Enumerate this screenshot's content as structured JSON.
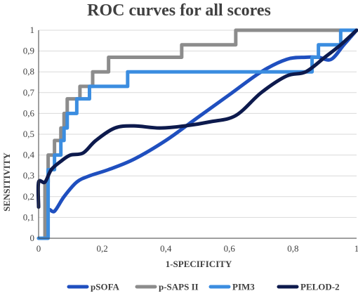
{
  "chart_data": {
    "type": "line",
    "title": "ROC curves for all scores",
    "xlabel": "1-SPECIFICITY",
    "ylabel": "SENSITIVITY",
    "xlim": [
      0,
      1
    ],
    "ylim": [
      0,
      1
    ],
    "x_ticks": [
      "0",
      "0,2",
      "0,4",
      "0,6",
      "0,8",
      "1"
    ],
    "y_ticks": [
      "0",
      "0,1",
      "0,2",
      "0,3",
      "0,4",
      "0,5",
      "0,6",
      "0,7",
      "0,8",
      "0,9",
      "1"
    ],
    "grid": "horizontal",
    "legend_position": "bottom",
    "series": [
      {
        "name": "pSOFA",
        "color": "#1f4fbf",
        "smooth": true,
        "points": [
          [
            0.02,
            0.0
          ],
          [
            0.03,
            0.13
          ],
          [
            0.05,
            0.13
          ],
          [
            0.08,
            0.2
          ],
          [
            0.12,
            0.27
          ],
          [
            0.16,
            0.3
          ],
          [
            0.22,
            0.33
          ],
          [
            0.3,
            0.38
          ],
          [
            0.4,
            0.47
          ],
          [
            0.5,
            0.58
          ],
          [
            0.6,
            0.69
          ],
          [
            0.7,
            0.8
          ],
          [
            0.78,
            0.86
          ],
          [
            0.84,
            0.87
          ],
          [
            0.88,
            0.87
          ],
          [
            0.92,
            0.86
          ],
          [
            0.96,
            0.93
          ],
          [
            1.0,
            1.0
          ]
        ]
      },
      {
        "name": "p-SAPS II",
        "color": "#8c8c8c",
        "smooth": false,
        "points": [
          [
            0.0,
            0.0
          ],
          [
            0.02,
            0.0
          ],
          [
            0.02,
            0.27
          ],
          [
            0.03,
            0.27
          ],
          [
            0.03,
            0.4
          ],
          [
            0.05,
            0.4
          ],
          [
            0.05,
            0.47
          ],
          [
            0.07,
            0.47
          ],
          [
            0.07,
            0.53
          ],
          [
            0.08,
            0.53
          ],
          [
            0.08,
            0.6
          ],
          [
            0.09,
            0.6
          ],
          [
            0.09,
            0.67
          ],
          [
            0.13,
            0.67
          ],
          [
            0.13,
            0.73
          ],
          [
            0.17,
            0.73
          ],
          [
            0.17,
            0.8
          ],
          [
            0.22,
            0.8
          ],
          [
            0.22,
            0.87
          ],
          [
            0.45,
            0.87
          ],
          [
            0.45,
            0.93
          ],
          [
            0.62,
            0.93
          ],
          [
            0.62,
            1.0
          ],
          [
            1.0,
            1.0
          ]
        ]
      },
      {
        "name": "PIM3",
        "color": "#3b8de0",
        "smooth": false,
        "points": [
          [
            0.0,
            0.0
          ],
          [
            0.03,
            0.0
          ],
          [
            0.03,
            0.33
          ],
          [
            0.05,
            0.33
          ],
          [
            0.05,
            0.4
          ],
          [
            0.07,
            0.4
          ],
          [
            0.07,
            0.47
          ],
          [
            0.08,
            0.47
          ],
          [
            0.08,
            0.53
          ],
          [
            0.09,
            0.53
          ],
          [
            0.09,
            0.6
          ],
          [
            0.12,
            0.6
          ],
          [
            0.12,
            0.67
          ],
          [
            0.16,
            0.67
          ],
          [
            0.16,
            0.73
          ],
          [
            0.28,
            0.73
          ],
          [
            0.28,
            0.8
          ],
          [
            0.86,
            0.8
          ],
          [
            0.86,
            0.87
          ],
          [
            0.88,
            0.87
          ],
          [
            0.88,
            0.93
          ],
          [
            0.95,
            0.93
          ],
          [
            0.95,
            1.0
          ],
          [
            1.0,
            1.0
          ]
        ]
      },
      {
        "name": "PELOD-2",
        "color": "#0d1a4d",
        "smooth": true,
        "points": [
          [
            0.0,
            0.15
          ],
          [
            0.0,
            0.27
          ],
          [
            0.02,
            0.27
          ],
          [
            0.04,
            0.33
          ],
          [
            0.07,
            0.37
          ],
          [
            0.1,
            0.4
          ],
          [
            0.14,
            0.41
          ],
          [
            0.18,
            0.47
          ],
          [
            0.24,
            0.53
          ],
          [
            0.3,
            0.54
          ],
          [
            0.38,
            0.53
          ],
          [
            0.46,
            0.54
          ],
          [
            0.54,
            0.56
          ],
          [
            0.62,
            0.59
          ],
          [
            0.7,
            0.7
          ],
          [
            0.78,
            0.78
          ],
          [
            0.84,
            0.8
          ],
          [
            0.9,
            0.87
          ],
          [
            0.95,
            0.93
          ],
          [
            1.0,
            1.0
          ]
        ]
      }
    ]
  }
}
